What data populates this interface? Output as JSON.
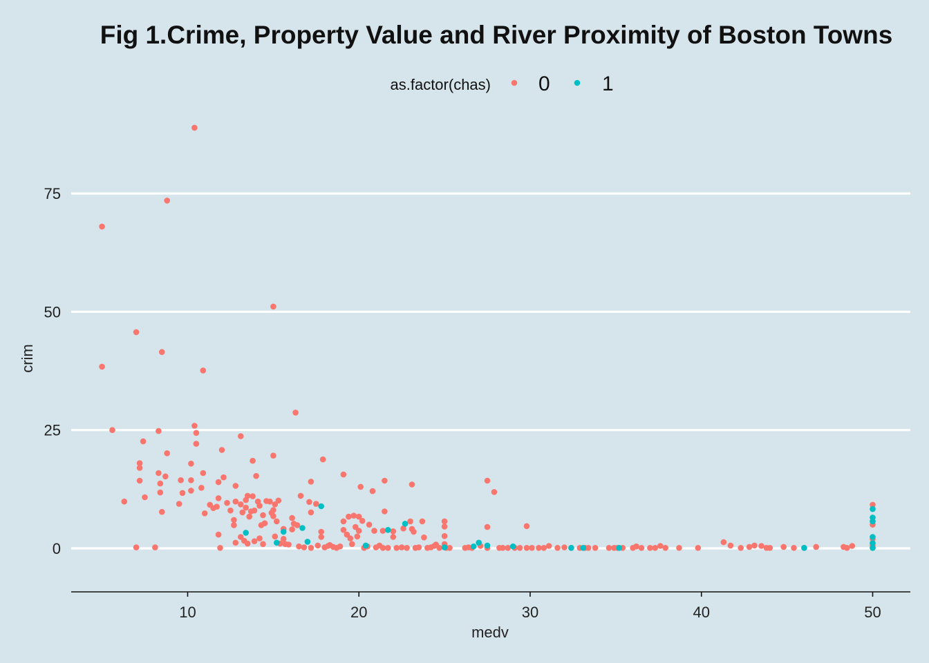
{
  "chart_data": {
    "type": "scatter",
    "title": "Fig 1.Crime, Property Value and River Proximity of Boston Towns",
    "xlabel": "medv",
    "ylabel": "crim",
    "xlim": [
      3.2,
      52.2
    ],
    "ylim": [
      -9.2,
      94
    ],
    "xticks": [
      10,
      20,
      30,
      40,
      50
    ],
    "yticks": [
      0,
      25,
      50,
      75
    ],
    "grid": "horizontal major lines only",
    "legend": {
      "title": "as.factor(chas)",
      "position": "top",
      "entries": [
        "0",
        "1"
      ]
    },
    "series": [
      {
        "name": "0",
        "color": "#f8766d",
        "points": [
          [
            5.0,
            68.0
          ],
          [
            5.0,
            38.4
          ],
          [
            5.6,
            25.0
          ],
          [
            6.3,
            9.9
          ],
          [
            7.0,
            45.7
          ],
          [
            7.0,
            0.2
          ],
          [
            7.2,
            18.0
          ],
          [
            7.2,
            17.0
          ],
          [
            7.2,
            14.3
          ],
          [
            7.4,
            22.6
          ],
          [
            7.5,
            10.8
          ],
          [
            8.1,
            0.2
          ],
          [
            8.3,
            24.8
          ],
          [
            8.3,
            15.9
          ],
          [
            8.4,
            13.7
          ],
          [
            8.4,
            11.8
          ],
          [
            8.5,
            41.5
          ],
          [
            8.5,
            7.7
          ],
          [
            8.7,
            15.2
          ],
          [
            8.8,
            20.1
          ],
          [
            8.8,
            73.5
          ],
          [
            9.5,
            9.4
          ],
          [
            9.6,
            14.4
          ],
          [
            9.7,
            11.7
          ],
          [
            10.2,
            17.9
          ],
          [
            10.2,
            14.4
          ],
          [
            10.2,
            12.2
          ],
          [
            10.4,
            88.9
          ],
          [
            10.4,
            25.9
          ],
          [
            10.5,
            24.4
          ],
          [
            10.5,
            22.1
          ],
          [
            10.9,
            15.9
          ],
          [
            10.9,
            37.6
          ],
          [
            10.8,
            12.8
          ],
          [
            11.0,
            7.4
          ],
          [
            11.3,
            9.2
          ],
          [
            11.5,
            8.5
          ],
          [
            11.7,
            8.8
          ],
          [
            11.8,
            14.0
          ],
          [
            11.8,
            10.6
          ],
          [
            11.8,
            2.9
          ],
          [
            11.9,
            0.1
          ],
          [
            12.0,
            20.8
          ],
          [
            12.1,
            15.0
          ],
          [
            12.3,
            9.6
          ],
          [
            12.5,
            8.0
          ],
          [
            12.7,
            6.0
          ],
          [
            12.7,
            4.9
          ],
          [
            12.8,
            13.2
          ],
          [
            12.8,
            9.9
          ],
          [
            12.8,
            1.2
          ],
          [
            13.1,
            23.7
          ],
          [
            13.1,
            9.3
          ],
          [
            13.1,
            2.4
          ],
          [
            13.2,
            7.6
          ],
          [
            13.3,
            1.6
          ],
          [
            13.4,
            10.2
          ],
          [
            13.4,
            8.6
          ],
          [
            13.5,
            11.1
          ],
          [
            13.5,
            1.0
          ],
          [
            13.6,
            6.7
          ],
          [
            13.7,
            7.8
          ],
          [
            13.8,
            11.0
          ],
          [
            13.8,
            18.5
          ],
          [
            13.9,
            8.0
          ],
          [
            13.9,
            1.5
          ],
          [
            14.0,
            15.3
          ],
          [
            14.1,
            9.9
          ],
          [
            14.2,
            9.0
          ],
          [
            14.2,
            2.1
          ],
          [
            14.3,
            4.9
          ],
          [
            14.4,
            7.0
          ],
          [
            14.4,
            0.9
          ],
          [
            14.5,
            5.3
          ],
          [
            14.6,
            10.0
          ],
          [
            14.8,
            9.9
          ],
          [
            14.9,
            7.5
          ],
          [
            15.0,
            19.6
          ],
          [
            15.0,
            51.1
          ],
          [
            15.0,
            8.1
          ],
          [
            15.0,
            6.8
          ],
          [
            15.1,
            9.3
          ],
          [
            15.1,
            2.5
          ],
          [
            15.2,
            5.7
          ],
          [
            15.3,
            10.1
          ],
          [
            15.4,
            1.0
          ],
          [
            15.6,
            4.1
          ],
          [
            15.6,
            2.0
          ],
          [
            15.7,
            0.9
          ],
          [
            15.9,
            0.8
          ],
          [
            16.1,
            6.4
          ],
          [
            16.1,
            4.0
          ],
          [
            16.2,
            5.2
          ],
          [
            16.3,
            28.7
          ],
          [
            16.4,
            4.9
          ],
          [
            16.5,
            0.4
          ],
          [
            16.6,
            11.1
          ],
          [
            16.8,
            0.2
          ],
          [
            17.1,
            9.8
          ],
          [
            17.2,
            14.1
          ],
          [
            17.2,
            7.6
          ],
          [
            17.2,
            0.1
          ],
          [
            17.5,
            9.4
          ],
          [
            17.6,
            0.6
          ],
          [
            17.8,
            3.5
          ],
          [
            17.8,
            2.4
          ],
          [
            17.9,
            18.8
          ],
          [
            18.0,
            0.2
          ],
          [
            18.2,
            0.5
          ],
          [
            18.3,
            0.7
          ],
          [
            18.5,
            0.3
          ],
          [
            18.7,
            0.1
          ],
          [
            18.9,
            0.4
          ],
          [
            19.1,
            15.6
          ],
          [
            19.1,
            5.7
          ],
          [
            19.1,
            3.9
          ],
          [
            19.3,
            2.9
          ],
          [
            19.4,
            6.7
          ],
          [
            19.5,
            2.1
          ],
          [
            19.6,
            0.9
          ],
          [
            19.7,
            6.9
          ],
          [
            19.8,
            4.5
          ],
          [
            19.9,
            2.5
          ],
          [
            20.0,
            6.7
          ],
          [
            20.0,
            3.7
          ],
          [
            20.1,
            13.0
          ],
          [
            20.2,
            5.8
          ],
          [
            20.3,
            0.1
          ],
          [
            20.5,
            0.4
          ],
          [
            20.6,
            5.0
          ],
          [
            20.8,
            12.1
          ],
          [
            20.9,
            3.7
          ],
          [
            21.0,
            0.2
          ],
          [
            21.2,
            0.6
          ],
          [
            21.4,
            3.7
          ],
          [
            21.4,
            0.1
          ],
          [
            21.5,
            14.3
          ],
          [
            21.5,
            7.8
          ],
          [
            21.7,
            0.1
          ],
          [
            22.0,
            3.6
          ],
          [
            22.0,
            2.4
          ],
          [
            22.2,
            0.1
          ],
          [
            22.5,
            0.2
          ],
          [
            22.6,
            4.2
          ],
          [
            22.8,
            0.1
          ],
          [
            23.0,
            5.7
          ],
          [
            23.1,
            13.5
          ],
          [
            23.1,
            4.1
          ],
          [
            23.2,
            3.5
          ],
          [
            23.3,
            0.1
          ],
          [
            23.5,
            0.2
          ],
          [
            23.7,
            5.7
          ],
          [
            23.8,
            2.3
          ],
          [
            24.0,
            0.1
          ],
          [
            24.2,
            0.2
          ],
          [
            24.4,
            0.5
          ],
          [
            24.5,
            0.8
          ],
          [
            24.7,
            0.1
          ],
          [
            25.0,
            5.7
          ],
          [
            25.0,
            4.6
          ],
          [
            25.0,
            2.6
          ],
          [
            25.0,
            0.9
          ],
          [
            25.1,
            0.1
          ],
          [
            25.3,
            0.1
          ],
          [
            26.2,
            0.1
          ],
          [
            26.4,
            0.2
          ],
          [
            26.6,
            0.1
          ],
          [
            27.1,
            0.5
          ],
          [
            27.5,
            14.3
          ],
          [
            27.5,
            4.5
          ],
          [
            27.5,
            0.1
          ],
          [
            27.9,
            11.9
          ],
          [
            28.2,
            0.1
          ],
          [
            28.4,
            0.1
          ],
          [
            28.7,
            0.1
          ],
          [
            29.1,
            0.1
          ],
          [
            29.4,
            0.1
          ],
          [
            29.8,
            4.7
          ],
          [
            29.8,
            0.1
          ],
          [
            30.1,
            0.1
          ],
          [
            30.5,
            0.1
          ],
          [
            30.8,
            0.1
          ],
          [
            31.1,
            0.5
          ],
          [
            31.6,
            0.1
          ],
          [
            32.0,
            0.2
          ],
          [
            32.4,
            0.1
          ],
          [
            32.9,
            0.1
          ],
          [
            33.2,
            0.1
          ],
          [
            33.4,
            0.1
          ],
          [
            33.8,
            0.1
          ],
          [
            34.6,
            0.1
          ],
          [
            34.9,
            0.1
          ],
          [
            35.1,
            0.1
          ],
          [
            35.4,
            0.1
          ],
          [
            36.0,
            0.1
          ],
          [
            36.2,
            0.4
          ],
          [
            36.5,
            0.1
          ],
          [
            37.0,
            0.1
          ],
          [
            37.3,
            0.1
          ],
          [
            37.6,
            0.5
          ],
          [
            37.9,
            0.1
          ],
          [
            38.7,
            0.1
          ],
          [
            39.8,
            0.1
          ],
          [
            41.3,
            1.3
          ],
          [
            41.7,
            0.6
          ],
          [
            42.3,
            0.1
          ],
          [
            42.8,
            0.3
          ],
          [
            43.1,
            0.6
          ],
          [
            43.5,
            0.5
          ],
          [
            43.8,
            0.1
          ],
          [
            44.0,
            0.1
          ],
          [
            44.8,
            0.3
          ],
          [
            45.4,
            0.1
          ],
          [
            46.0,
            0.1
          ],
          [
            46.7,
            0.3
          ],
          [
            48.3,
            0.3
          ],
          [
            48.5,
            0.1
          ],
          [
            48.8,
            0.5
          ],
          [
            50.0,
            9.2
          ],
          [
            50.0,
            5.0
          ],
          [
            50.0,
            2.0
          ],
          [
            50.0,
            0.6
          ],
          [
            50.0,
            0.1
          ]
        ]
      },
      {
        "name": "1",
        "color": "#00bfc4",
        "points": [
          [
            13.4,
            3.3
          ],
          [
            15.2,
            1.2
          ],
          [
            15.6,
            3.5
          ],
          [
            16.7,
            4.3
          ],
          [
            17.0,
            1.4
          ],
          [
            17.8,
            8.9
          ],
          [
            20.4,
            0.6
          ],
          [
            21.7,
            3.9
          ],
          [
            22.7,
            5.2
          ],
          [
            25.0,
            0.2
          ],
          [
            26.7,
            0.4
          ],
          [
            27.0,
            1.2
          ],
          [
            27.5,
            0.6
          ],
          [
            29.0,
            0.4
          ],
          [
            32.4,
            0.1
          ],
          [
            33.1,
            0.1
          ],
          [
            35.2,
            0.1
          ],
          [
            46.0,
            0.1
          ],
          [
            50.0,
            8.3
          ],
          [
            50.0,
            6.5
          ],
          [
            50.0,
            5.7
          ],
          [
            50.0,
            2.4
          ],
          [
            50.0,
            1.1
          ],
          [
            50.0,
            0.1
          ]
        ]
      }
    ]
  }
}
